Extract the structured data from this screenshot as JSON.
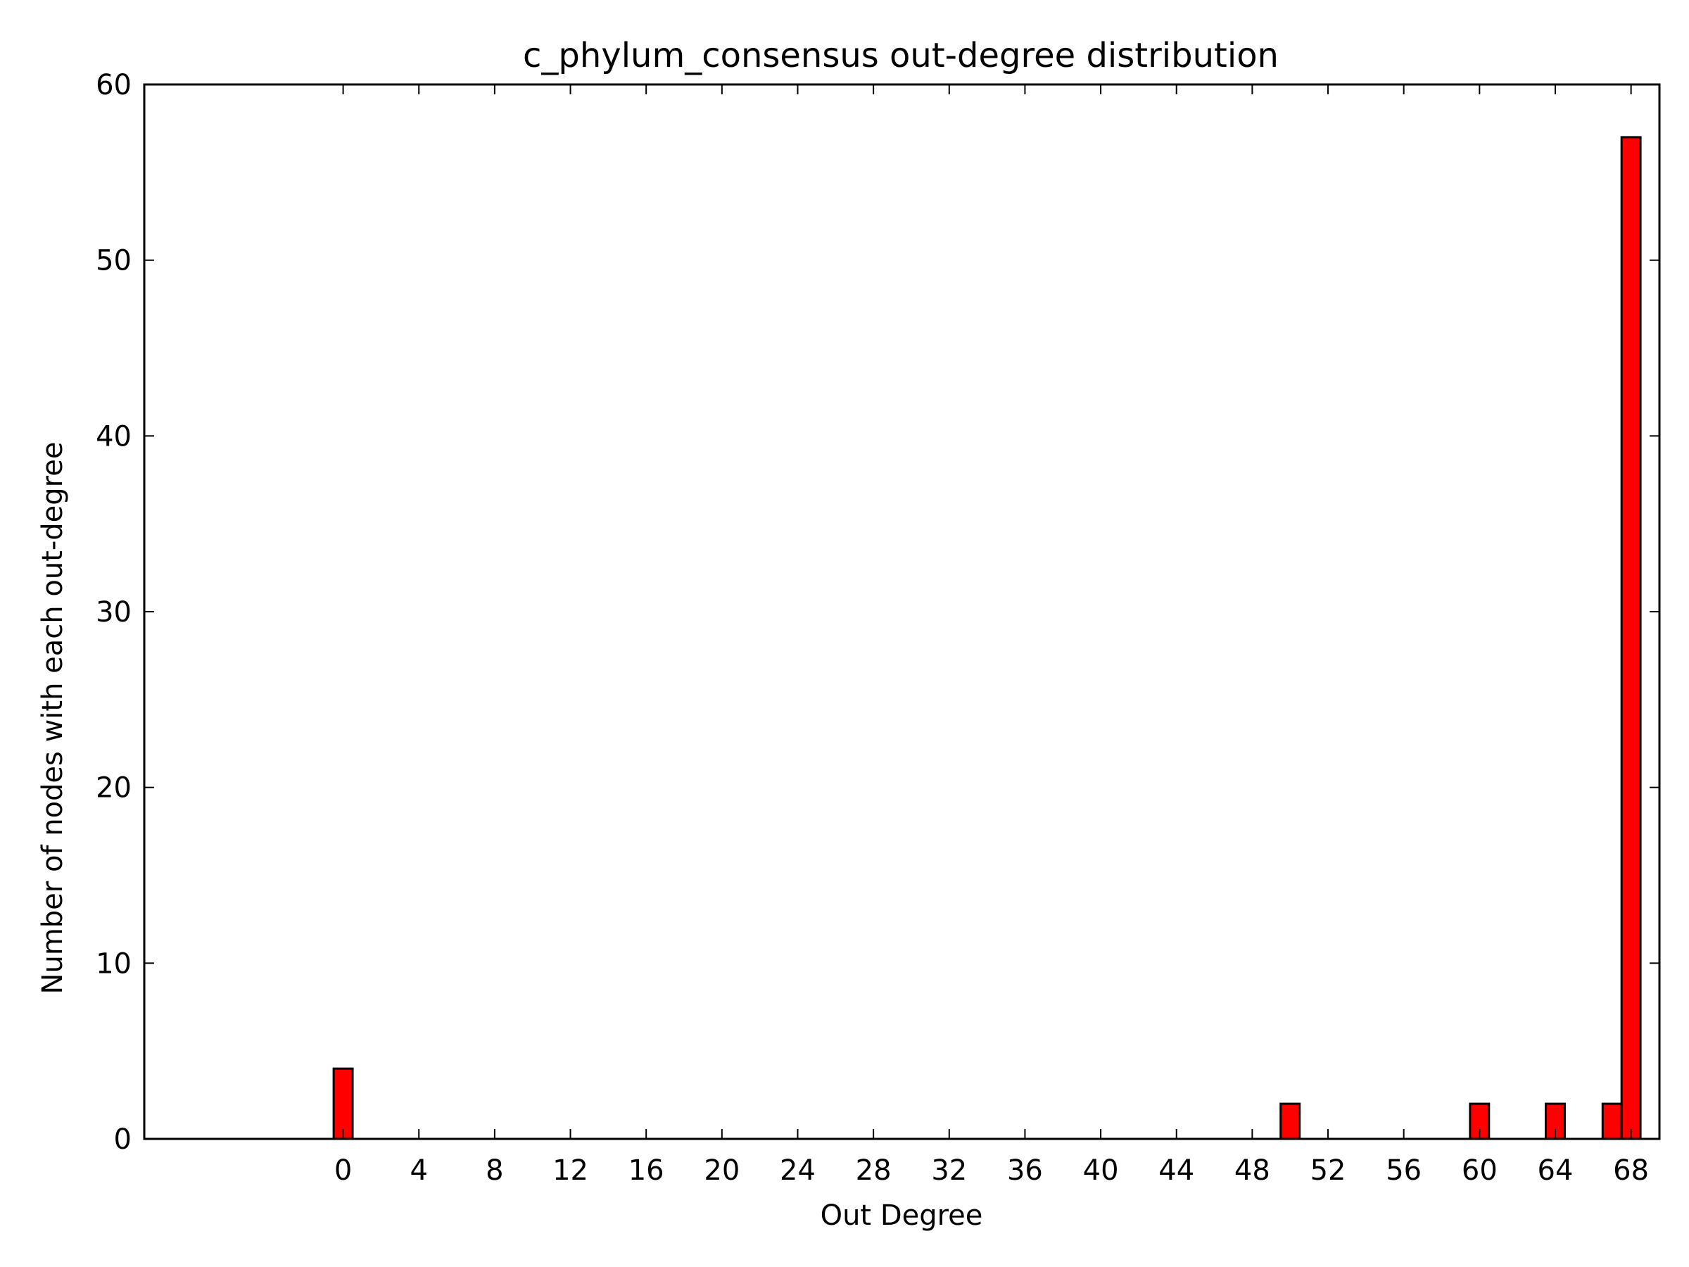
{
  "chart_data": {
    "type": "bar",
    "title": "c_phylum_consensus out-degree distribution",
    "xlabel": "Out Degree",
    "ylabel": "Number of nodes with each out-degree",
    "xlim": [
      -10,
      70
    ],
    "ylim": [
      0,
      60
    ],
    "x_ticks": [
      "0",
      "4",
      "8",
      "12",
      "16",
      "20",
      "24",
      "28",
      "32",
      "36",
      "40",
      "44",
      "48",
      "52",
      "56",
      "60",
      "64",
      "68"
    ],
    "y_ticks": [
      "0",
      "10",
      "20",
      "30",
      "40",
      "50",
      "60"
    ],
    "bar_color": "#ff0000",
    "bar_edge_color": "#000000",
    "grid": false,
    "series": [
      {
        "x": [
          0,
          50,
          60,
          64,
          67,
          68
        ],
        "values": [
          4,
          2,
          2,
          2,
          2,
          57
        ]
      }
    ]
  }
}
